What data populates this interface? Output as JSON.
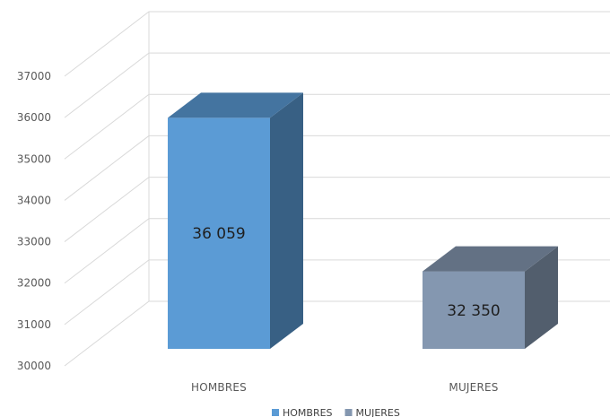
{
  "chart_data": {
    "type": "bar",
    "style": "3d-column",
    "categories": [
      "HOMBRES",
      "MUJERES"
    ],
    "series": [
      {
        "name": "HOMBRES",
        "values": [
          36059,
          null
        ],
        "color": "#5b9bd5",
        "label": "36 059"
      },
      {
        "name": "MUJERES",
        "values": [
          null,
          32350
        ],
        "color": "#8497b0",
        "label": "32 350"
      }
    ],
    "title": "",
    "xlabel": "",
    "ylabel": "",
    "ylim": [
      30000,
      37000
    ],
    "yticks": [
      "30000",
      "31000",
      "32000",
      "33000",
      "34000",
      "35000",
      "36000",
      "37000"
    ],
    "grid": true,
    "legend": "bottom"
  }
}
